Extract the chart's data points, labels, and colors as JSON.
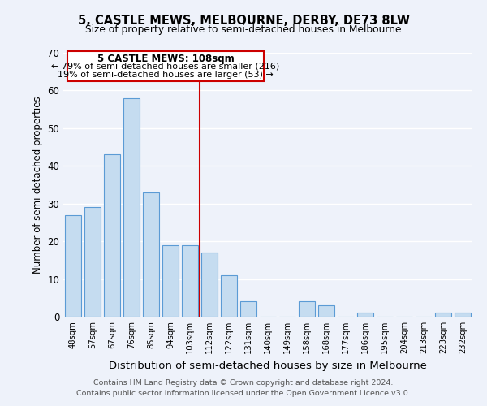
{
  "title": "5, CASTLE MEWS, MELBOURNE, DERBY, DE73 8LW",
  "subtitle": "Size of property relative to semi-detached houses in Melbourne",
  "xlabel": "Distribution of semi-detached houses by size in Melbourne",
  "ylabel": "Number of semi-detached properties",
  "bar_labels": [
    "48sqm",
    "57sqm",
    "67sqm",
    "76sqm",
    "85sqm",
    "94sqm",
    "103sqm",
    "112sqm",
    "122sqm",
    "131sqm",
    "140sqm",
    "149sqm",
    "158sqm",
    "168sqm",
    "177sqm",
    "186sqm",
    "195sqm",
    "204sqm",
    "213sqm",
    "223sqm",
    "232sqm"
  ],
  "bar_values": [
    27,
    29,
    43,
    58,
    33,
    19,
    19,
    17,
    11,
    4,
    0,
    0,
    4,
    3,
    0,
    1,
    0,
    0,
    0,
    1,
    1
  ],
  "bar_color": "#c5dcf0",
  "bar_edge_color": "#5b9bd5",
  "ylim": [
    0,
    70
  ],
  "yticks": [
    0,
    10,
    20,
    30,
    40,
    50,
    60,
    70
  ],
  "vline_x": 6.5,
  "vline_color": "#cc0000",
  "annotation_title": "5 CASTLE MEWS: 108sqm",
  "annotation_line1": "← 79% of semi-detached houses are smaller (216)",
  "annotation_line2": "19% of semi-detached houses are larger (53) →",
  "annotation_box_color": "#ffffff",
  "annotation_box_edge": "#cc0000",
  "footer1": "Contains HM Land Registry data © Crown copyright and database right 2024.",
  "footer2": "Contains public sector information licensed under the Open Government Licence v3.0.",
  "background_color": "#eef2fa"
}
